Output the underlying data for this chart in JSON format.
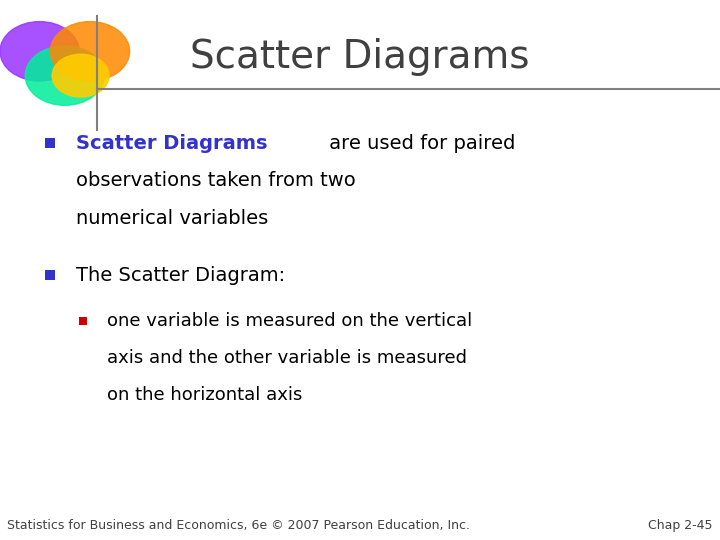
{
  "title": "Scatter Diagrams",
  "title_color": "#404040",
  "title_fontsize": 28,
  "background_color": "#ffffff",
  "header_line_color": "#808080",
  "bullet1_colored": "Scatter Diagrams",
  "bullet1_colored_color": "#3333cc",
  "bullet1_rest_line1": " are used for paired",
  "bullet1_line2": "observations taken from two",
  "bullet1_line3": "numerical variables",
  "bullet1_rest_color": "#000000",
  "bullet2_label": "The Scatter Diagram:",
  "bullet2_label_color": "#000000",
  "sub_bullet_line1": "one variable is measured on the vertical",
  "sub_bullet_line2": "axis and the other variable is measured",
  "sub_bullet_line3": "on the horizontal axis",
  "sub_bullet_color": "#000000",
  "bullet_color": "#3333cc",
  "sub_bullet_marker_color": "#cc0000",
  "footer_left": "Statistics for Business and Economics, 6e © 2007 Pearson Education, Inc.",
  "footer_right": "Chap 2-45",
  "footer_color": "#404040",
  "footer_fontsize": 9,
  "circle_colors": [
    "#9933ff",
    "#00ee99",
    "#ff8800"
  ],
  "circle_alpha": 0.85,
  "yellow_color": "#ffcc00"
}
